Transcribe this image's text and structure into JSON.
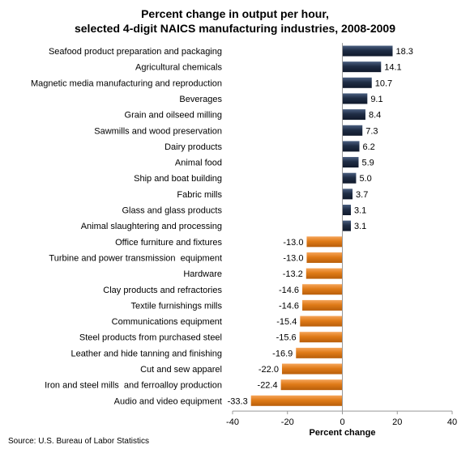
{
  "chart_data": {
    "type": "bar",
    "orientation": "horizontal",
    "title_lines": [
      "Percent change in output per hour,",
      "selected 4-digit NAICS manufacturing industries, 2008-2009"
    ],
    "xlabel": "Percent change",
    "ylabel": "",
    "xlim": [
      -40,
      40
    ],
    "xticks": [
      "-40",
      "-20",
      "0",
      "20",
      "40"
    ],
    "grid": false,
    "legend": "none",
    "colors": {
      "positive": "#1f2d45",
      "negative": "#e07b18"
    },
    "categories": [
      "Seafood product preparation and packaging",
      "Agricultural chemicals",
      "Magnetic media manufacturing and reproduction",
      "Beverages",
      "Grain and oilseed milling",
      "Sawmills and wood preservation",
      "Dairy products",
      "Animal food",
      "Ship and boat building",
      "Fabric mills",
      "Glass and glass products",
      "Animal slaughtering and processing",
      "Office furniture and fixtures",
      "Turbine and power transmission  equipment",
      "Hardware",
      "Clay products and refractories",
      "Textile furnishings mills",
      "Communications equipment",
      "Steel products from purchased steel",
      "Leather and hide tanning and finishing",
      "Cut and sew apparel",
      "Iron and steel mills  and ferroalloy production",
      "Audio and video equipment"
    ],
    "values": [
      18.3,
      14.1,
      10.7,
      9.1,
      8.4,
      7.3,
      6.2,
      5.9,
      5.0,
      3.7,
      3.1,
      3.1,
      -13.0,
      -13.0,
      -13.2,
      -14.6,
      -14.6,
      -15.4,
      -15.6,
      -16.9,
      -22.0,
      -22.4,
      -33.3
    ],
    "value_labels": [
      "18.3",
      "14.1",
      "10.7",
      "9.1",
      "8.4",
      "7.3",
      "6.2",
      "5.9",
      "5.0",
      "3.7",
      "3.1",
      "3.1",
      "-13.0",
      "-13.0",
      "-13.2",
      "-14.6",
      "-14.6",
      "-15.4",
      "-15.6",
      "-16.9",
      "-22.0",
      "-22.4",
      "-33.3"
    ]
  },
  "source": "Source: U.S. Bureau of Labor Statistics"
}
